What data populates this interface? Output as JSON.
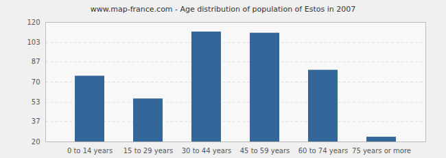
{
  "chart_data": {
    "type": "bar",
    "title": "www.map-france.com - Age distribution of population of Estos in 2007",
    "categories": [
      "0 to 14 years",
      "15 to 29 years",
      "30 to 44 years",
      "45 to 59 years",
      "60 to 74 years",
      "75 years or more"
    ],
    "values": [
      75,
      56,
      112,
      111,
      80,
      24
    ],
    "color": "#336699",
    "ylim": [
      20,
      120
    ],
    "yticks": [
      20,
      37,
      53,
      70,
      87,
      103,
      120
    ],
    "grid": true
  }
}
